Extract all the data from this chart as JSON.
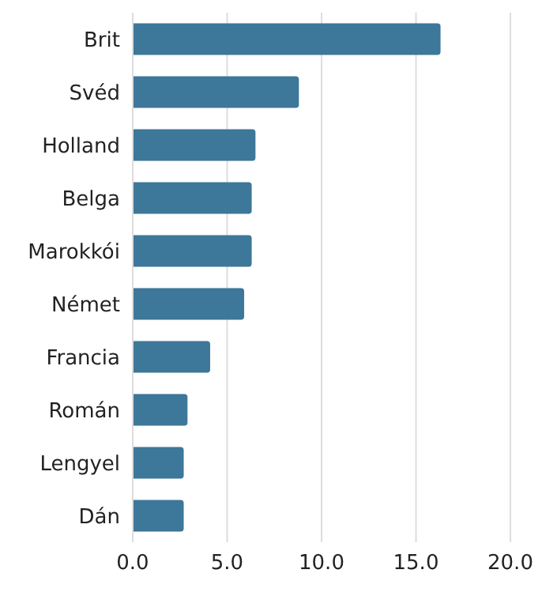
{
  "chart_data": {
    "type": "bar",
    "orientation": "horizontal",
    "categories": [
      "Brit",
      "Svéd",
      "Holland",
      "Belga",
      "Marokkói",
      "Német",
      "Francia",
      "Román",
      "Lengyel",
      "Dán"
    ],
    "values": [
      16.3,
      8.8,
      6.5,
      6.3,
      6.3,
      5.9,
      4.1,
      2.9,
      2.7,
      2.7
    ],
    "color": "#3d7799",
    "xlim": [
      0,
      20
    ],
    "xticks": [
      {
        "value": 0,
        "label": "0.0"
      },
      {
        "value": 5,
        "label": "5.0"
      },
      {
        "value": 10,
        "label": "10.0"
      },
      {
        "value": 15,
        "label": "15.0"
      },
      {
        "value": 20,
        "label": "20.0"
      }
    ],
    "grid": "x"
  }
}
